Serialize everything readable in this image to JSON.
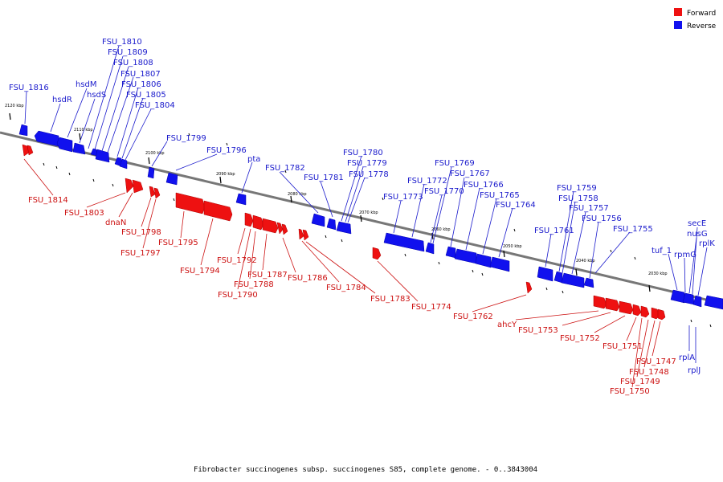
{
  "legend": {
    "forward_label": "Forward",
    "reverse_label": "Reverse",
    "forward_color": "#ee1111",
    "reverse_color": "#1111ee"
  },
  "caption": "Fibrobacter succinogenes subsp. succinogenes S85, complete genome. - 0..3843004",
  "kbp_ticks": [
    "2120 kbp",
    "2110 kbp",
    "2100 kbp",
    "2090 kbp",
    "2080 kbp",
    "2070 kbp",
    "2060 kbp",
    "2050 kbp",
    "2040 kbp",
    "2030 kbp"
  ],
  "reverse_labels": [
    "FSU_1816",
    "hsdR",
    "hsdM",
    "hsdS",
    "FSU_1810",
    "FSU_1809",
    "FSU_1808",
    "FSU_1807",
    "FSU_1806",
    "FSU_1805",
    "FSU_1804",
    "FSU_1799",
    "FSU_1796",
    "pta",
    "FSU_1782",
    "FSU_1781",
    "FSU_1780",
    "FSU_1779",
    "FSU_1778",
    "FSU_1773",
    "FSU_1772",
    "FSU_1770",
    "FSU_1769",
    "FSU_1767",
    "FSU_1766",
    "FSU_1765",
    "FSU_1764",
    "FSU_1761",
    "FSU_1759",
    "FSU_1758",
    "FSU_1757",
    "FSU_1756",
    "FSU_1755",
    "tuf_1",
    "rpmG",
    "nusG",
    "secE",
    "rplK",
    "rplA",
    "rplJ"
  ],
  "forward_labels": [
    "FSU_1814",
    "FSU_1803",
    "dnaN",
    "FSU_1798",
    "FSU_1797",
    "FSU_1795",
    "FSU_1794",
    "FSU_1792",
    "FSU_1788",
    "FSU_1787",
    "FSU_1790",
    "FSU_1786",
    "FSU_1784",
    "FSU_1783",
    "FSU_1774",
    "FSU_1762",
    "ahcY",
    "FSU_1753",
    "FSU_1752",
    "FSU_1751",
    "FSU_1747",
    "FSU_1748",
    "FSU_1749",
    "FSU_1750"
  ]
}
